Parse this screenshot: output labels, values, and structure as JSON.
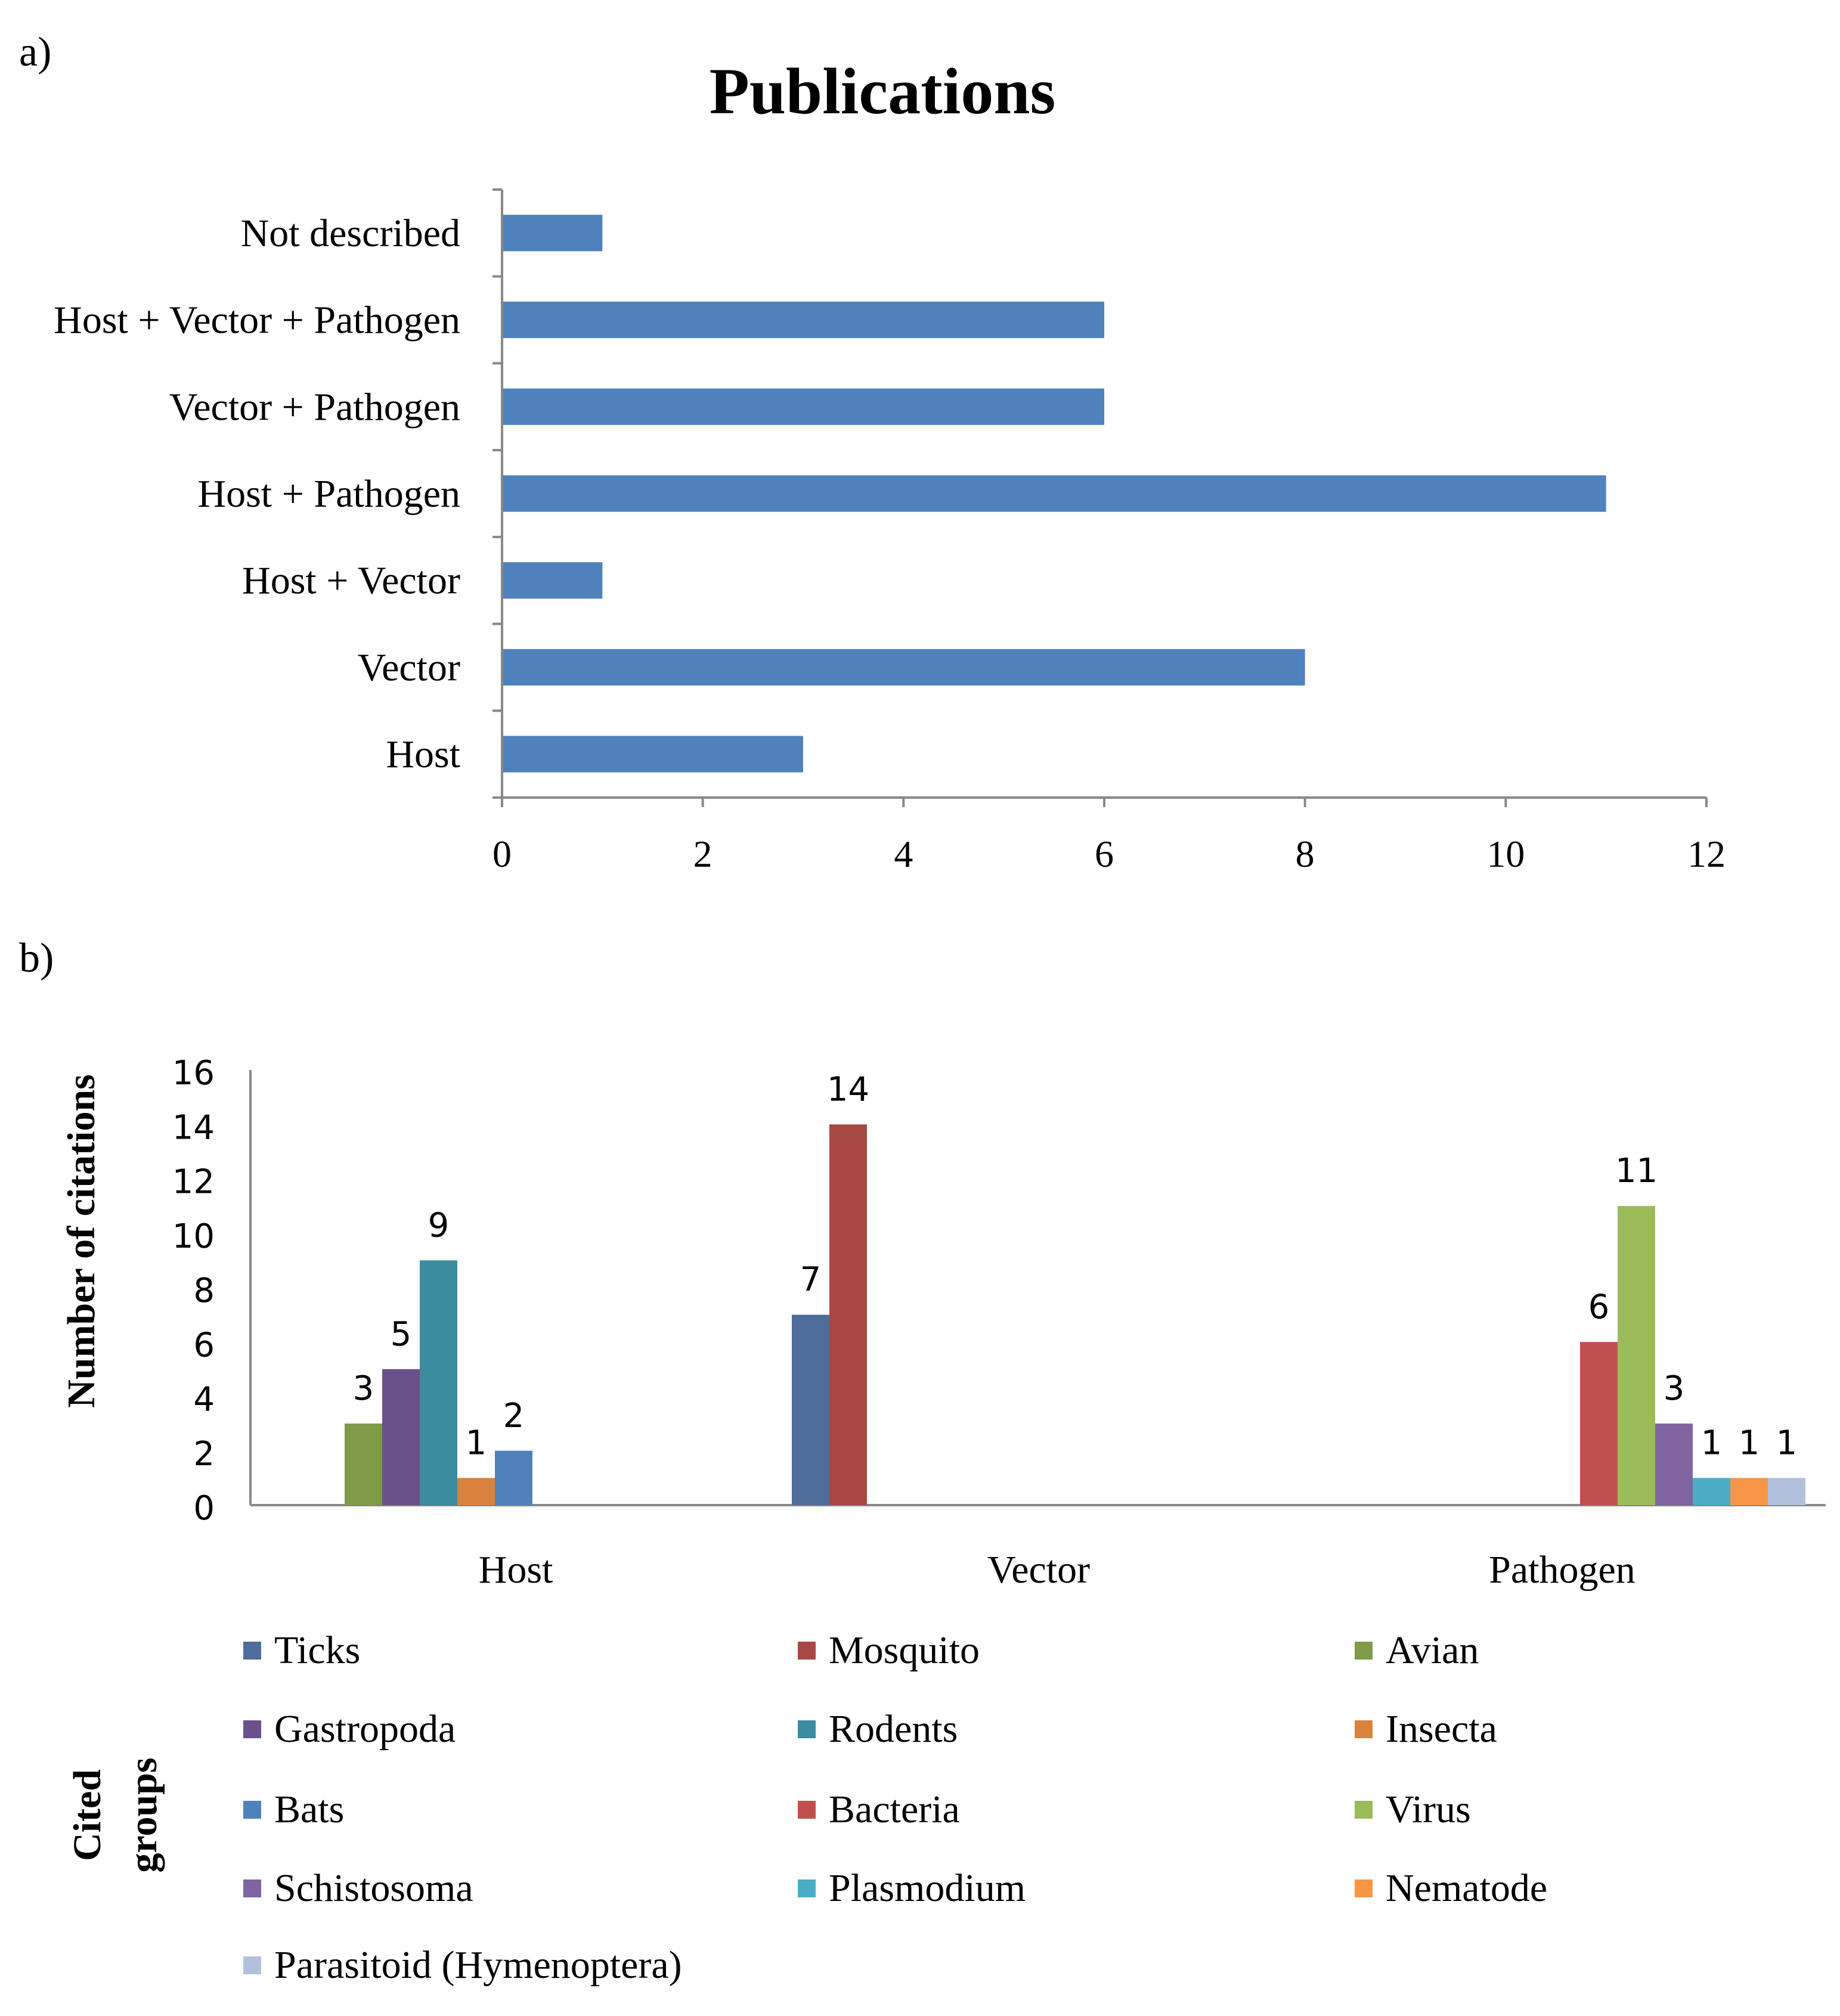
{
  "figure": {
    "panel_a_label": "a)",
    "panel_b_label": "b)"
  },
  "chart_data": [
    {
      "type": "bar",
      "orientation": "horizontal",
      "title": "Publications",
      "categories": [
        "Not described",
        "Host + Vector + Pathogen",
        "Vector + Pathogen",
        "Host + Pathogen",
        "Host + Vector",
        "Vector",
        "Host"
      ],
      "values": [
        1,
        6,
        6,
        11,
        1,
        8,
        3
      ],
      "xlabel": "",
      "ylabel": "",
      "xlim": [
        0,
        12
      ],
      "xticks": [
        0,
        2,
        4,
        6,
        8,
        10,
        12
      ],
      "grid": false,
      "color": "#4F81BD"
    },
    {
      "type": "bar",
      "orientation": "vertical",
      "title": "",
      "ylabel": "Number of citations",
      "xlabel": "",
      "ylim": [
        0,
        16
      ],
      "yticks": [
        0,
        2,
        4,
        6,
        8,
        10,
        12,
        14,
        16
      ],
      "grid": false,
      "legend_title": "Cited groups",
      "legend_position": "bottom",
      "categories": [
        "Host",
        "Vector",
        "Pathogen"
      ],
      "series": [
        {
          "name": "Ticks",
          "color": "#4F6D9A",
          "values": [
            null,
            7,
            null
          ]
        },
        {
          "name": "Mosquito",
          "color": "#A84845",
          "values": [
            null,
            14,
            null
          ]
        },
        {
          "name": "Avian",
          "color": "#7F9A48",
          "values": [
            3,
            null,
            null
          ]
        },
        {
          "name": "Gastropoda",
          "color": "#6B5189",
          "values": [
            5,
            null,
            null
          ]
        },
        {
          "name": "Rodents",
          "color": "#3B8C9E",
          "values": [
            9,
            null,
            null
          ]
        },
        {
          "name": "Insecta",
          "color": "#D9823B",
          "values": [
            1,
            null,
            null
          ]
        },
        {
          "name": "Bats",
          "color": "#4F81BD",
          "values": [
            2,
            null,
            null
          ]
        },
        {
          "name": "Bacteria",
          "color": "#C0504D",
          "values": [
            null,
            null,
            6
          ]
        },
        {
          "name": "Virus",
          "color": "#9BBB59",
          "values": [
            null,
            null,
            11
          ]
        },
        {
          "name": "Schistosoma",
          "color": "#8064A2",
          "values": [
            null,
            null,
            3
          ]
        },
        {
          "name": "Plasmodium",
          "color": "#4BACC6",
          "values": [
            null,
            null,
            1
          ]
        },
        {
          "name": "Nematode",
          "color": "#F79646",
          "values": [
            null,
            null,
            1
          ]
        },
        {
          "name": "Parasitoid (Hymenoptera)",
          "color": "#B3C0DC",
          "values": [
            null,
            null,
            1
          ]
        }
      ]
    }
  ]
}
